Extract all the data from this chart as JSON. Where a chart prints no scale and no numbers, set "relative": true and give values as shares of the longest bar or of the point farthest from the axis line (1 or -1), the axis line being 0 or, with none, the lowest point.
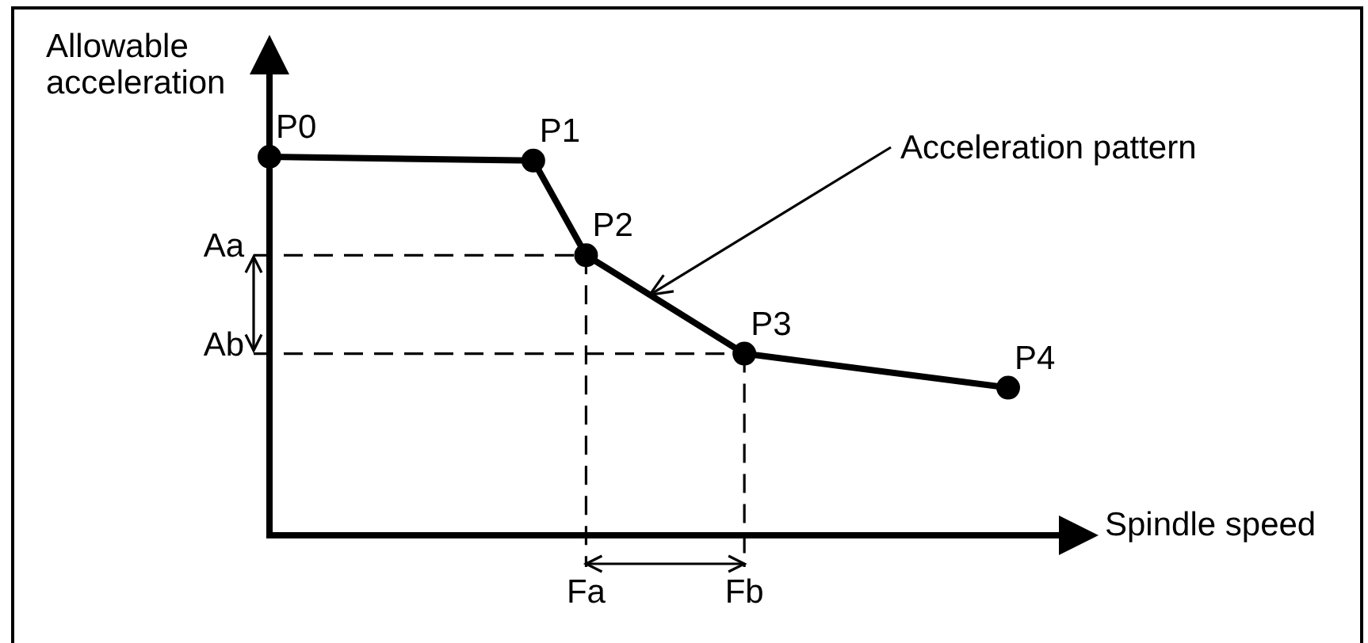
{
  "chart_data": {
    "type": "line",
    "relative": true,
    "xlabel": "Spindle speed",
    "ylabel": "Allowable acceleration",
    "categories": [
      null,
      null,
      null,
      null,
      null,
      null,
      "Fa",
      null,
      null,
      "Fb",
      null,
      null,
      null,
      null,
      null
    ],
    "values": [
      1,
      null,
      null,
      null,
      null,
      0.99,
      0.74,
      null,
      null,
      0.48,
      null,
      null,
      null,
      null,
      0.39
    ],
    "color": "#000000",
    "marker": "circle",
    "annotations": [
      {
        "text": "P0",
        "y": 1
      },
      "P1",
      {
        "text": "P2",
        "x": "Fa",
        "y": 0.74
      },
      {
        "text": "P3",
        "x": "Fb",
        "y": 0.48
      },
      "P4",
      "Acceleration pattern"
    ],
    "ref_lines": [
      {
        "axis": "y",
        "value": 0.74,
        "label": "Aa",
        "line_style": "dashed"
      },
      {
        "axis": "y",
        "value": 0.48,
        "label": "Ab",
        "line_style": "dashed"
      },
      {
        "axis": "x",
        "value": "Fa",
        "line_style": "dashed"
      },
      {
        "axis": "x",
        "value": "Fb",
        "line_style": "dashed"
      }
    ],
    "tick_labels": "x"
  }
}
